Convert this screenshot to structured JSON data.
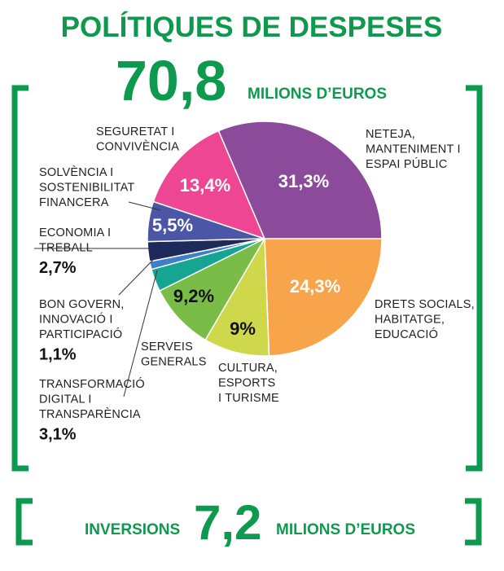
{
  "header": {
    "title": "POLÍTIQUES DE DESPESES",
    "total_value": "70,8",
    "total_unit": "MILIONS D’EUROS"
  },
  "footer": {
    "label": "INVERSIONS",
    "value": "7,2",
    "unit": "MILIONS D’EUROS"
  },
  "colors": {
    "accent": "#0e9a4e"
  },
  "chart_data": {
    "type": "pie",
    "start_angle_deg": 0,
    "direction": "clockwise",
    "slices": [
      {
        "name": "DRETS SOCIALS, HABITATGE, EDUCACIÓ",
        "value": 24.3,
        "label": "24,3%",
        "color": "#f7a44b",
        "label_color": "#ffffff"
      },
      {
        "name": "CULTURA, ESPORTS I TURISME",
        "value": 9.0,
        "label": "9%",
        "color": "#cfd84a",
        "label_color": "#111111"
      },
      {
        "name": "SERVEIS GENERALS",
        "value": 9.2,
        "label": "9,2%",
        "color": "#79bd48",
        "label_color": "#111111"
      },
      {
        "name": "TRANSFORMACIÓ DIGITAL I TRANSPARÈNCIA",
        "value": 3.1,
        "label": "3,1%",
        "color": "#16a593",
        "label_color": ""
      },
      {
        "name": "BON GOVERN, INNOVACIÓ I PARTICIPACIÓ",
        "value": 1.1,
        "label": "1,1%",
        "color": "#3f7ec8",
        "label_color": ""
      },
      {
        "name": "ECONOMIA I TREBALL",
        "value": 2.7,
        "label": "2,7%",
        "color": "#1f2a5c",
        "label_color": ""
      },
      {
        "name": "SOLVÈNCIA I SOSTENIBILITAT FINANCERA",
        "value": 5.5,
        "label": "5,5%",
        "color": "#4b56a6",
        "label_color": "#ffffff"
      },
      {
        "name": "SEGURETAT I CONVIVÈNCIA",
        "value": 13.4,
        "label": "13,4%",
        "color": "#ef4693",
        "label_color": "#ffffff"
      },
      {
        "name": "NETEJA, MANTENIMENT I ESPAI PÚBLIC",
        "value": 31.3,
        "label": "31,3%",
        "color": "#8c4a9b",
        "label_color": "#ffffff"
      }
    ],
    "callouts": [
      {
        "lines": [
          "NETEJA,",
          "MANTENIMENT I",
          "ESPAI PÚBLIC"
        ],
        "pct": ""
      },
      {
        "lines": [
          "SEGURETAT I",
          "CONVIVÈNCIA"
        ],
        "pct": ""
      },
      {
        "lines": [
          "SOLVÈNCIA I",
          "SOSTENIBILITAT",
          "FINANCERA"
        ],
        "pct": ""
      },
      {
        "lines": [
          "ECONOMIA I",
          "TREBALL"
        ],
        "pct": "2,7%"
      },
      {
        "lines": [
          "BON GOVERN,",
          "INNOVACIÓ I",
          "PARTICIPACIÓ"
        ],
        "pct": "1,1%"
      },
      {
        "lines": [
          "SERVEIS",
          "GENERALS"
        ],
        "pct": ""
      },
      {
        "lines": [
          "TRANSFORMACIÓ",
          "DIGITAL I",
          "TRANSPARÈNCIA"
        ],
        "pct": "3,1%"
      },
      {
        "lines": [
          "CULTURA,",
          "ESPORTS",
          "I TURISME"
        ],
        "pct": ""
      },
      {
        "lines": [
          "DRETS SOCIALS,",
          "HABITATGE,",
          "EDUCACIÓ"
        ],
        "pct": ""
      }
    ]
  }
}
